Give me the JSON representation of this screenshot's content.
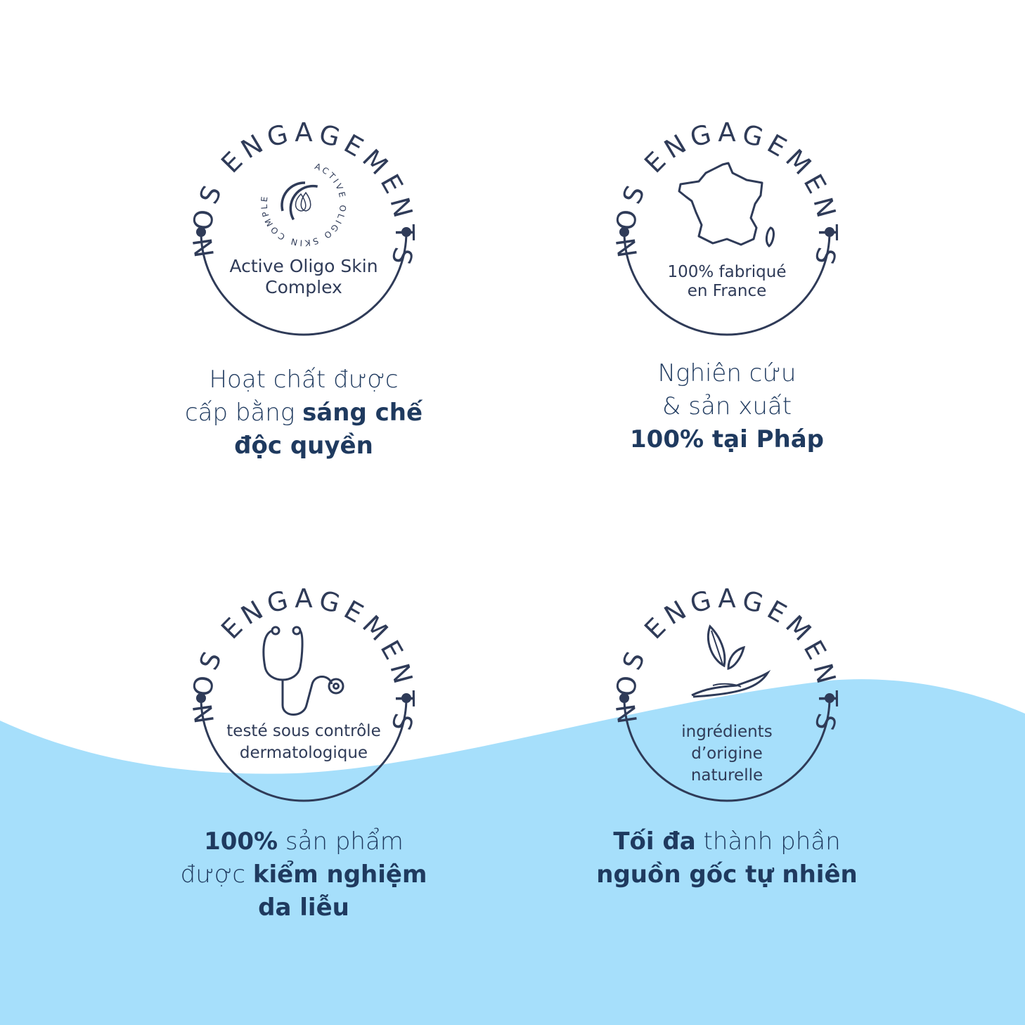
{
  "colors": {
    "navy": "#2f3b58",
    "text": "#1f3a5f",
    "wave": "#a6dffb",
    "background": "#ffffff"
  },
  "badges": [
    {
      "arc_title": "NOS ENGAGEMENTS",
      "icon": "active-oligo-drop-icon",
      "logo_text": "ACTIVE OLIGO SKIN COMPLEX",
      "label_lines": [
        "Active Oligo Skin",
        "Complex"
      ]
    },
    {
      "arc_title": "NOS ENGAGEMENTS",
      "icon": "france-map-icon",
      "label_lines": [
        "100% fabriqué",
        "en France"
      ]
    },
    {
      "arc_title": "NOS ENGAGEMENTS",
      "icon": "stethoscope-icon",
      "label_lines": [
        "testé sous contrôle",
        "dermatologique"
      ]
    },
    {
      "arc_title": "NOS ENGAGEMENTS",
      "icon": "leaf-hand-icon",
      "label_lines": [
        "ingrédients",
        "d’origine",
        "naturelle"
      ]
    }
  ],
  "captions": [
    {
      "l1": "Hoạt chất được",
      "l2a": "cấp bằng ",
      "l2b": "sáng chế",
      "l3": "độc quyền"
    },
    {
      "l1": "Nghiên cứu",
      "l2": "& sản xuất",
      "l3": "100% tại Pháp"
    },
    {
      "l1a": "100%",
      "l1b": " sản phẩm",
      "l2a": "được ",
      "l2b": "kiểm nghiệm",
      "l3": "da liễu"
    },
    {
      "l1a": "Tối đa",
      "l1b": " thành phần",
      "l2": "nguồn gốc tự nhiên"
    }
  ]
}
